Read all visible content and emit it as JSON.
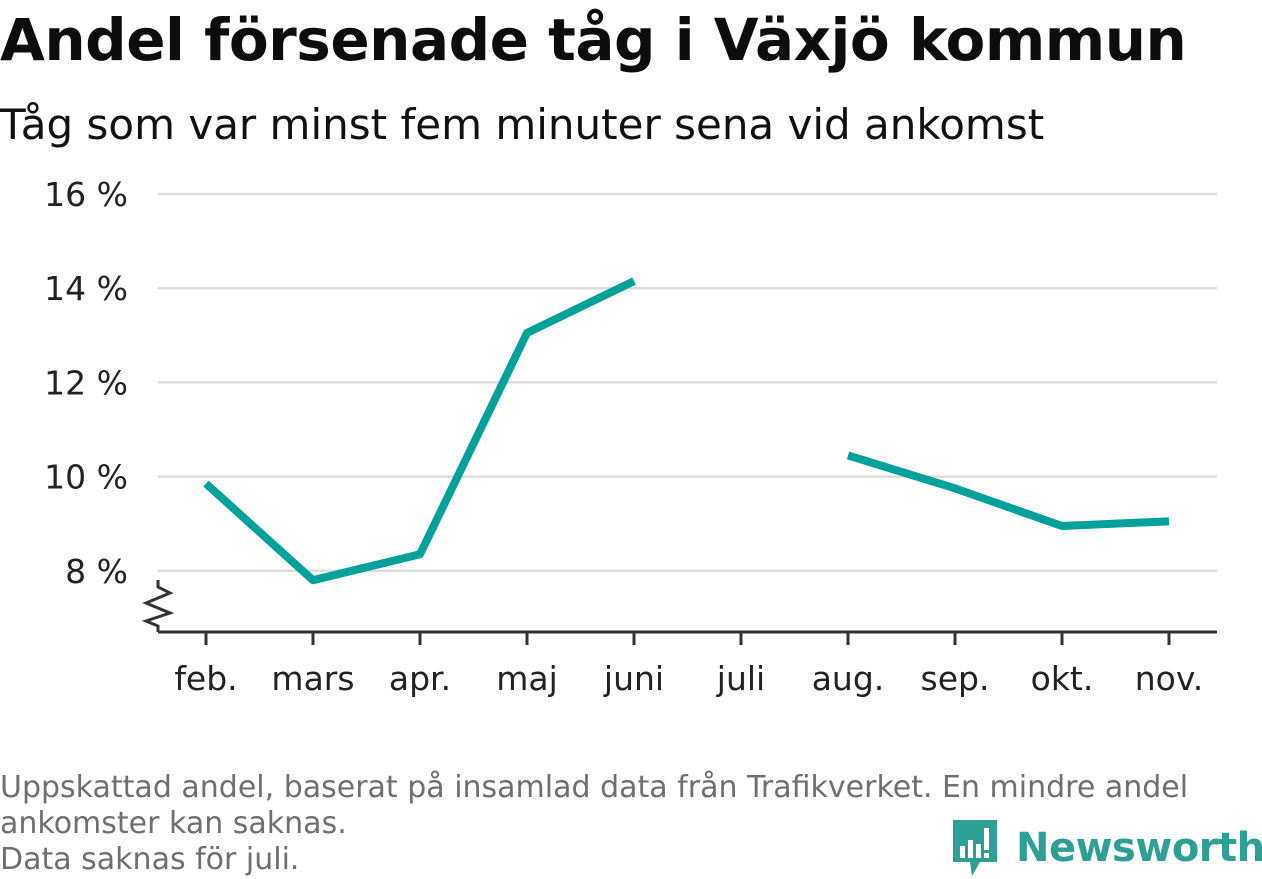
{
  "header": {
    "title": "Andel försenade tåg i Växjö kommun",
    "subtitle": "Tåg som var minst fem minuter sena vid ankomst"
  },
  "chart_data": {
    "type": "line",
    "categories": [
      "feb.",
      "mars",
      "apr.",
      "maj",
      "juni",
      "juli",
      "aug.",
      "sep.",
      "okt.",
      "nov."
    ],
    "series": [
      {
        "values": [
          9.85,
          7.8,
          8.35,
          13.05,
          14.15,
          null,
          10.45,
          9.75,
          8.95,
          9.05
        ]
      }
    ],
    "yticks": [
      8,
      10,
      12,
      14,
      16
    ],
    "ytick_labels": [
      "8 %",
      "10 %",
      "12 %",
      "14 %",
      "16 %"
    ],
    "ylim": [
      6.7,
      16
    ],
    "grid": true,
    "axis_break": true,
    "line_color": "#00a19a"
  },
  "footer": {
    "note_line1": "Uppskattad andel, baserat på insamlad data från Trafikverket. En mindre andel",
    "note_line2": "ankomster kan saknas.",
    "note_line3": "Data saknas för juli.",
    "logo_text": "Newsworthy",
    "logo_icon": "bar-chart-speech-bubble-icon",
    "logo_color": "#2e9f95"
  }
}
